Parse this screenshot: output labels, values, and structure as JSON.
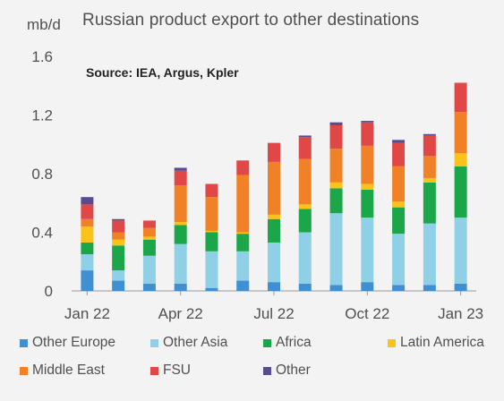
{
  "chart_data": {
    "type": "bar",
    "stacked": true,
    "title": "Russian product export to other destinations",
    "ylabel": "mb/d",
    "annotation": "Source: IEA, Argus, Kpler",
    "ylim": [
      0,
      1.6
    ],
    "yticks": [
      "0",
      "0.4",
      "0.8",
      "1.2",
      "1.6"
    ],
    "grid": false,
    "legend_position": "bottom",
    "categories": [
      "Jan 22",
      "Feb 22",
      "Mar 22",
      "Apr 22",
      "May 22",
      "Jun 22",
      "Jul 22",
      "Aug 22",
      "Sep 22",
      "Oct 22",
      "Nov 22",
      "Dec 22",
      "Jan 23"
    ],
    "x_tick_labels": [
      "Jan 22",
      "Apr 22",
      "Jul 22",
      "Oct 22",
      "Jan 23"
    ],
    "x_tick_indices": [
      0,
      3,
      6,
      9,
      12
    ],
    "series": [
      {
        "name": "Other Europe",
        "color": "#3f8fd2",
        "values": [
          0.14,
          0.07,
          0.05,
          0.05,
          0.02,
          0.07,
          0.06,
          0.05,
          0.04,
          0.06,
          0.04,
          0.04,
          0.05
        ]
      },
      {
        "name": "Other Asia",
        "color": "#8fd0e6",
        "values": [
          0.11,
          0.07,
          0.19,
          0.27,
          0.25,
          0.2,
          0.27,
          0.35,
          0.49,
          0.44,
          0.35,
          0.42,
          0.45
        ]
      },
      {
        "name": "Africa",
        "color": "#1ba64a",
        "values": [
          0.08,
          0.17,
          0.11,
          0.13,
          0.13,
          0.12,
          0.16,
          0.16,
          0.17,
          0.19,
          0.18,
          0.28,
          0.35
        ]
      },
      {
        "name": "Latin America",
        "color": "#fbc21a",
        "values": [
          0.11,
          0.04,
          0.02,
          0.02,
          0.01,
          0.01,
          0.03,
          0.03,
          0.04,
          0.04,
          0.04,
          0.03,
          0.09
        ]
      },
      {
        "name": "Middle East",
        "color": "#f08126",
        "values": [
          0.05,
          0.05,
          0.06,
          0.25,
          0.23,
          0.39,
          0.36,
          0.31,
          0.23,
          0.26,
          0.24,
          0.15,
          0.28
        ]
      },
      {
        "name": "FSU",
        "color": "#e04848",
        "values": [
          0.1,
          0.08,
          0.05,
          0.1,
          0.09,
          0.1,
          0.13,
          0.15,
          0.16,
          0.16,
          0.16,
          0.14,
          0.2
        ]
      },
      {
        "name": "Other",
        "color": "#5a4a8f",
        "values": [
          0.05,
          0.01,
          0.0,
          0.02,
          0.0,
          0.0,
          0.0,
          0.01,
          0.02,
          0.01,
          0.02,
          0.01,
          0.0
        ]
      }
    ]
  }
}
